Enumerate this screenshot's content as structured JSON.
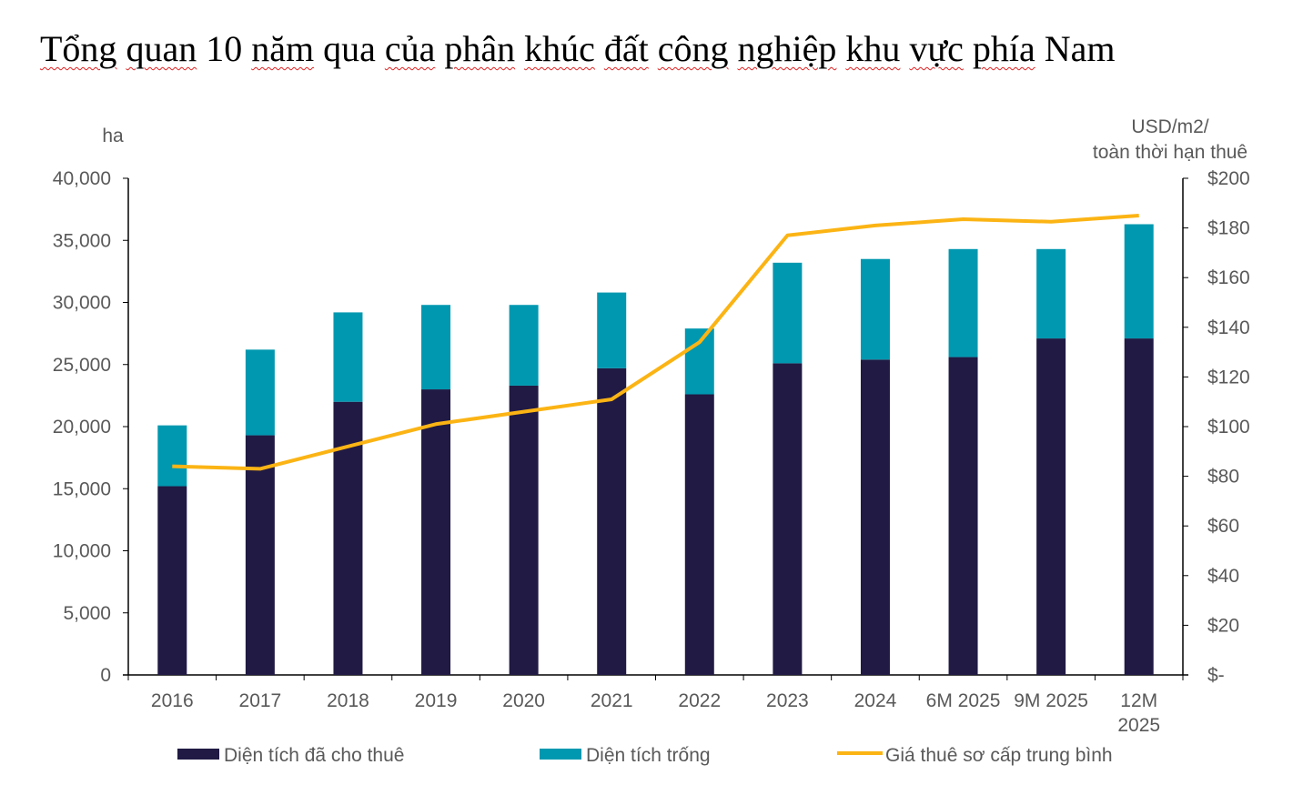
{
  "title": "Tổng quan 10 năm qua của phân khúc đất công nghiệp khu vực phía Nam",
  "chart_data": {
    "type": "bar",
    "title": "Tổng quan 10 năm qua của phân khúc đất công nghiệp khu vực phía Nam",
    "categories": [
      "2016",
      "2017",
      "2018",
      "2019",
      "2020",
      "2021",
      "2022",
      "2023",
      "2024",
      "6M 2025",
      "9M 2025",
      "12M 2025"
    ],
    "ylabel": "ha",
    "ylabel_right": [
      "USD/m2/",
      "toàn thời hạn thuê"
    ],
    "ylim": [
      0,
      40000
    ],
    "ylim_right": [
      0,
      200
    ],
    "yticks": [
      "0",
      "5,000",
      "10,000",
      "15,000",
      "20,000",
      "25,000",
      "30,000",
      "35,000",
      "40,000"
    ],
    "yticks_right": [
      "$-",
      "$20",
      "$40",
      "$60",
      "$80",
      "$100",
      "$120",
      "$140",
      "$160",
      "$180",
      "$200"
    ],
    "series": [
      {
        "name": "Diện tích đã cho thuê",
        "type": "bar",
        "stack": true,
        "color": "#201a44",
        "values": [
          15200,
          19300,
          22000,
          23000,
          23300,
          24700,
          22600,
          25100,
          25400,
          25600,
          27100,
          27100
        ]
      },
      {
        "name": "Diện tích trống",
        "type": "bar",
        "stack": true,
        "color": "#0098b0",
        "values": [
          4900,
          6900,
          7200,
          6800,
          6500,
          6100,
          5300,
          8100,
          8100,
          8700,
          7200,
          9200
        ]
      },
      {
        "name": "Giá thuê sơ cấp trung bình",
        "type": "line",
        "axis": "right",
        "color": "#fbb414",
        "values": [
          84,
          83,
          92,
          101,
          106,
          111,
          134,
          177,
          181,
          183.5,
          182.5,
          185
        ]
      }
    ],
    "legend": "bottom"
  }
}
